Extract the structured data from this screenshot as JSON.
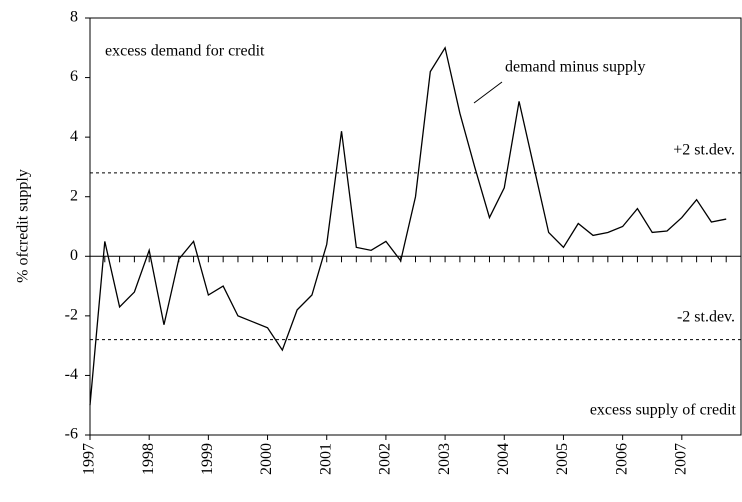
{
  "chart_data": {
    "type": "line",
    "y_label": "% ofcredit supply",
    "x": [
      1997,
      1997.25,
      1997.5,
      1997.75,
      1998,
      1998.25,
      1998.5,
      1998.75,
      1999,
      1999.25,
      1999.5,
      1999.75,
      2000,
      2000.25,
      2000.5,
      2000.75,
      2001,
      2001.25,
      2001.5,
      2001.75,
      2002,
      2002.25,
      2002.5,
      2002.75,
      2003,
      2003.25,
      2003.5,
      2003.75,
      2004,
      2004.25,
      2004.5,
      2004.75,
      2005,
      2005.25,
      2005.5,
      2005.75,
      2006,
      2006.25,
      2006.5,
      2006.75,
      2007,
      2007.25,
      2007.5,
      2007.75
    ],
    "series": [
      {
        "name": "demand minus supply",
        "color": "#000000",
        "values": [
          -5,
          0.5,
          -1.7,
          -1.2,
          0.2,
          -2.3,
          -0.1,
          0.5,
          -1.3,
          -1.0,
          -2.0,
          -2.2,
          -2.4,
          -3.15,
          -1.8,
          -1.3,
          0.4,
          4.2,
          0.3,
          0.2,
          0.5,
          -0.15,
          2.0,
          6.2,
          7.0,
          4.8,
          3.0,
          1.3,
          2.3,
          5.2,
          3.0,
          0.8,
          0.3,
          1.1,
          0.7,
          0.8,
          1.0,
          1.6,
          0.8,
          0.85,
          1.3,
          1.9,
          1.15,
          1.25
        ]
      }
    ],
    "reference_lines": [
      {
        "value": 2.8,
        "label": "+2 st.dev."
      },
      {
        "value": -2.8,
        "label": "-2 st.dev."
      }
    ],
    "annotations": [
      "excess demand for credit",
      "excess supply of credit"
    ],
    "xlim": [
      1997,
      2008
    ],
    "xticks": [
      1997,
      1998,
      1999,
      2000,
      2001,
      2002,
      2003,
      2004,
      2005,
      2006,
      2007
    ],
    "ylim": [
      -6,
      8
    ],
    "yticks": [
      -6,
      -4,
      -2,
      0,
      2,
      4,
      6,
      8
    ]
  }
}
